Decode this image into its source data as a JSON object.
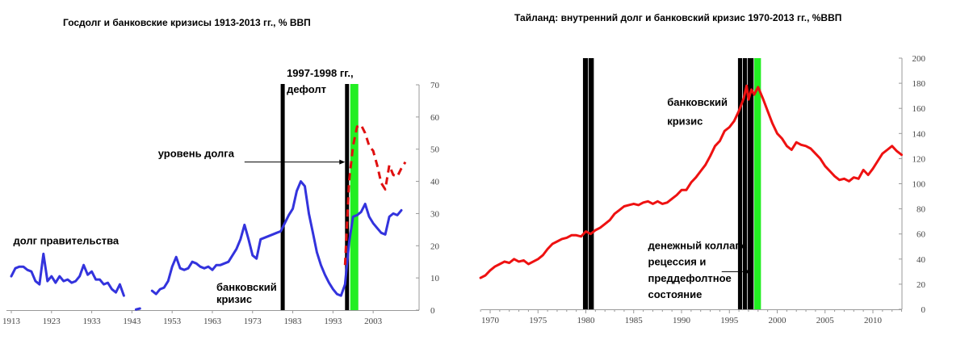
{
  "chart_data": [
    {
      "type": "line",
      "title": "Госдолг и банковские кризисы 1913-2013 гг., % ВВП",
      "xlabel": "",
      "ylabel": "",
      "xlim": [
        1913,
        2013
      ],
      "ylim": [
        0,
        70
      ],
      "x_tick_labels": [
        "1913",
        "1923",
        "1933",
        "1943",
        "1953",
        "1963",
        "1973",
        "1983",
        "1993",
        "2003"
      ],
      "x_ticks": [
        1913,
        1923,
        1933,
        1943,
        1953,
        1963,
        1973,
        1983,
        1993,
        2003
      ],
      "y_tick_labels": [
        "0",
        "10",
        "20",
        "30",
        "40",
        "50",
        "60",
        "70"
      ],
      "y_ticks": [
        0,
        10,
        20,
        30,
        40,
        50,
        60,
        70
      ],
      "colors": {
        "solid": "#3333dd",
        "dashed": "#e01010",
        "bars": "#000000",
        "green": "#22ee22"
      },
      "vertical_bars": [
        {
          "x": 1980.5,
          "kind": "black"
        },
        {
          "x": 1996.5,
          "kind": "black"
        },
        {
          "x": 1998.3,
          "kind": "green"
        }
      ],
      "series": [
        {
          "style": "solid",
          "segments": [
            [
              [
                1913,
                10.5
              ],
              [
                1914,
                13
              ],
              [
                1915,
                13.5
              ],
              [
                1916,
                13.5
              ],
              [
                1917,
                12.5
              ],
              [
                1918,
                12
              ],
              [
                1919,
                9
              ],
              [
                1920,
                8
              ],
              [
                1921,
                17.5
              ],
              [
                1922,
                9
              ],
              [
                1923,
                10.5
              ],
              [
                1924,
                8.5
              ],
              [
                1925,
                10.5
              ],
              [
                1926,
                9
              ],
              [
                1927,
                9.5
              ],
              [
                1928,
                8.5
              ],
              [
                1929,
                9
              ],
              [
                1930,
                10.5
              ],
              [
                1931,
                14
              ],
              [
                1932,
                11
              ],
              [
                1933,
                12
              ],
              [
                1934,
                9.5
              ],
              [
                1935,
                9.5
              ],
              [
                1936,
                8
              ],
              [
                1937,
                8.5
              ],
              [
                1938,
                6.5
              ],
              [
                1939,
                5.5
              ],
              [
                1940,
                8
              ],
              [
                1941,
                4.5
              ]
            ],
            [
              [
                1944,
                0.2
              ],
              [
                1945,
                0.5
              ]
            ],
            [
              [
                1948,
                6
              ],
              [
                1949,
                5
              ],
              [
                1950,
                6.5
              ],
              [
                1951,
                7
              ],
              [
                1952,
                9
              ],
              [
                1953,
                13.5
              ],
              [
                1954,
                16.5
              ],
              [
                1955,
                13
              ],
              [
                1956,
                12.5
              ],
              [
                1957,
                13
              ],
              [
                1958,
                15
              ],
              [
                1959,
                14.5
              ],
              [
                1960,
                13.5
              ],
              [
                1961,
                13
              ],
              [
                1962,
                13.5
              ],
              [
                1963,
                12.5
              ],
              [
                1964,
                14
              ],
              [
                1965,
                14
              ],
              [
                1966,
                14.5
              ],
              [
                1967,
                15
              ],
              [
                1968,
                17
              ],
              [
                1969,
                19
              ],
              [
                1970,
                22
              ],
              [
                1971,
                26.5
              ],
              [
                1972,
                22
              ],
              [
                1973,
                17
              ],
              [
                1974,
                16
              ],
              [
                1975,
                22
              ],
              [
                1976,
                22.5
              ],
              [
                1977,
                23
              ],
              [
                1978,
                23.5
              ],
              [
                1979,
                24
              ],
              [
                1980,
                24.5
              ],
              [
                1981,
                27
              ],
              [
                1982,
                29.5
              ],
              [
                1983,
                31.5
              ],
              [
                1984,
                37
              ],
              [
                1985,
                40
              ],
              [
                1986,
                38.5
              ],
              [
                1987,
                30
              ],
              [
                1988,
                24
              ],
              [
                1989,
                18
              ],
              [
                1990,
                14
              ],
              [
                1991,
                11
              ],
              [
                1992,
                8.5
              ],
              [
                1993,
                6.5
              ],
              [
                1994,
                5
              ],
              [
                1995,
                4.5
              ],
              [
                1996,
                8
              ],
              [
                1997,
                21
              ],
              [
                1998,
                29
              ],
              [
                1999,
                29.5
              ],
              [
                2000,
                30.5
              ],
              [
                2001,
                33
              ],
              [
                2002,
                29
              ],
              [
                2003,
                27
              ],
              [
                2004,
                25.5
              ],
              [
                2005,
                24
              ],
              [
                2006,
                23.5
              ],
              [
                2007,
                29
              ],
              [
                2008,
                30
              ],
              [
                2009,
                29.5
              ],
              [
                2010,
                31
              ]
            ]
          ]
        },
        {
          "style": "dashed",
          "segments": [
            [
              [
                1996,
                14
              ],
              [
                1997,
                40
              ],
              [
                1998,
                51
              ],
              [
                1999,
                57
              ],
              [
                2000,
                57.5
              ],
              [
                2001,
                55
              ],
              [
                2002,
                51
              ],
              [
                2003,
                49.5
              ],
              [
                2004,
                45
              ],
              [
                2005,
                39.5
              ],
              [
                2006,
                37.5
              ],
              [
                2007,
                45
              ],
              [
                2008,
                42
              ],
              [
                2009,
                41.5
              ],
              [
                2010,
                44
              ],
              [
                2011,
                46
              ]
            ]
          ]
        }
      ],
      "annotations": [
        {
          "text": "долг правительства",
          "x": 1913.5,
          "y": 20.5
        },
        {
          "text": "уровень долга",
          "x": 1949.5,
          "y": 47.5,
          "arrow_from": 1971,
          "arrow_to": 1996,
          "arrow_y": 46
        },
        {
          "text": "банковский",
          "x": 1964,
          "y": 6
        },
        {
          "text": "кризис",
          "x": 1964,
          "y": 2.2
        },
        {
          "text": "1997-1998 гг.,",
          "x": 1981.5,
          "y": 72.5
        },
        {
          "text": "дефолт",
          "x": 1981.5,
          "y": 67.5
        }
      ]
    },
    {
      "type": "line",
      "title": "Тайланд: внутренний долг и банковский кризис 1970-2013 гг., %ВВП",
      "xlabel": "",
      "ylabel": "",
      "xlim": [
        1969,
        2013
      ],
      "ylim": [
        0,
        200
      ],
      "x_tick_labels": [
        "1970",
        "1975",
        "1980",
        "1985",
        "1990",
        "1995",
        "2000",
        "2005",
        "2010"
      ],
      "x_ticks": [
        1970,
        1975,
        1980,
        1985,
        1990,
        1995,
        2000,
        2005,
        2010
      ],
      "y_tick_labels": [
        "0",
        "20",
        "40",
        "60",
        "80",
        "100",
        "120",
        "140",
        "160",
        "180",
        "200"
      ],
      "y_ticks": [
        0,
        20,
        40,
        60,
        80,
        100,
        120,
        140,
        160,
        180,
        200
      ],
      "colors": {
        "line": "#ee1111",
        "bars": "#000000",
        "green": "#22ee22"
      },
      "vertical_bars": [
        {
          "x1": 1979.7,
          "x2": 1980.3,
          "kind": "black"
        },
        {
          "x1": 1980.3,
          "x2": 1980.9,
          "kind": "black"
        },
        {
          "x1": 1995.9,
          "x2": 1996.4,
          "kind": "black"
        },
        {
          "x1": 1996.4,
          "x2": 1996.9,
          "kind": "black"
        },
        {
          "x1": 1996.9,
          "x2": 1997.6,
          "kind": "black"
        },
        {
          "x1": 1997.6,
          "x2": 1998.3,
          "kind": "green"
        }
      ],
      "series": [
        {
          "style": "solid",
          "segments": [
            [
              [
                1969,
                25
              ],
              [
                1969.5,
                27
              ],
              [
                1970,
                31
              ],
              [
                1970.5,
                34
              ],
              [
                1971,
                36
              ],
              [
                1971.5,
                38
              ],
              [
                1972,
                37
              ],
              [
                1972.5,
                40
              ],
              [
                1973,
                38
              ],
              [
                1973.5,
                39
              ],
              [
                1974,
                36
              ],
              [
                1974.5,
                38
              ],
              [
                1975,
                40
              ],
              [
                1975.5,
                43
              ],
              [
                1976,
                48
              ],
              [
                1976.5,
                52
              ],
              [
                1977,
                54
              ],
              [
                1977.5,
                56
              ],
              [
                1978,
                57
              ],
              [
                1978.5,
                59
              ],
              [
                1979,
                59
              ],
              [
                1979.5,
                58
              ],
              [
                1980,
                62
              ],
              [
                1980.5,
                60
              ],
              [
                1981,
                63
              ],
              [
                1981.5,
                65
              ],
              [
                1982,
                68
              ],
              [
                1982.5,
                71
              ],
              [
                1983,
                76
              ],
              [
                1983.5,
                79
              ],
              [
                1984,
                82
              ],
              [
                1984.5,
                83
              ],
              [
                1985,
                84
              ],
              [
                1985.5,
                83
              ],
              [
                1986,
                85
              ],
              [
                1986.5,
                86
              ],
              [
                1987,
                84
              ],
              [
                1987.5,
                86
              ],
              [
                1988,
                84
              ],
              [
                1988.5,
                85
              ],
              [
                1989,
                88
              ],
              [
                1989.5,
                91
              ],
              [
                1990,
                95
              ],
              [
                1990.5,
                95
              ],
              [
                1991,
                101
              ],
              [
                1991.5,
                105
              ],
              [
                1992,
                110
              ],
              [
                1992.5,
                115
              ],
              [
                1993,
                122
              ],
              [
                1993.5,
                130
              ],
              [
                1994,
                134
              ],
              [
                1994.5,
                142
              ],
              [
                1995,
                145
              ],
              [
                1995.5,
                150
              ],
              [
                1996,
                158
              ],
              [
                1996.5,
                168
              ],
              [
                1996.8,
                178
              ],
              [
                1997,
                167
              ],
              [
                1997.3,
                175
              ],
              [
                1997.6,
                171
              ],
              [
                1998,
                177
              ],
              [
                1998.5,
                168
              ],
              [
                1999,
                158
              ],
              [
                1999.5,
                148
              ],
              [
                2000,
                140
              ],
              [
                2000.5,
                136
              ],
              [
                2001,
                130
              ],
              [
                2001.5,
                127
              ],
              [
                2002,
                133
              ],
              [
                2002.5,
                131
              ],
              [
                2003,
                130
              ],
              [
                2003.5,
                128
              ],
              [
                2004,
                124
              ],
              [
                2004.5,
                120
              ],
              [
                2005,
                114
              ],
              [
                2005.5,
                110
              ],
              [
                2006,
                106
              ],
              [
                2006.5,
                103
              ],
              [
                2007,
                104
              ],
              [
                2007.5,
                102
              ],
              [
                2008,
                105
              ],
              [
                2008.5,
                104
              ],
              [
                2009,
                111
              ],
              [
                2009.5,
                107
              ],
              [
                2010,
                112
              ],
              [
                2010.5,
                118
              ],
              [
                2011,
                124
              ],
              [
                2011.5,
                127
              ],
              [
                2012,
                130
              ],
              [
                2012.5,
                126
              ],
              [
                2013,
                123
              ]
            ]
          ]
        }
      ],
      "annotations": [
        {
          "text": "банковский",
          "x": 1988.5,
          "y": 162
        },
        {
          "text": "кризис",
          "x": 1988.5,
          "y": 147
        },
        {
          "text": "денежный коллапс,",
          "x": 1986.5,
          "y": 48
        },
        {
          "text": "рецессия и",
          "x": 1986.5,
          "y": 35
        },
        {
          "text": "преддефолтное",
          "x": 1986.5,
          "y": 22
        },
        {
          "text": "состояние",
          "x": 1986.5,
          "y": 9
        }
      ]
    }
  ]
}
